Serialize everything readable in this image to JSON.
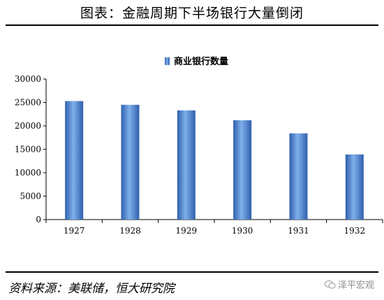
{
  "header": {
    "title": "图表：金融周期下半场银行大量倒闭"
  },
  "footer": {
    "source": "资料来源：美联储，恒大研究院",
    "watermark": "泽平宏观"
  },
  "chart_data": {
    "type": "bar",
    "categories": [
      "1927",
      "1928",
      "1929",
      "1930",
      "1931",
      "1932"
    ],
    "series": [
      {
        "name": "商业银行数量",
        "values": [
          25300,
          24500,
          23300,
          21200,
          18400,
          13900
        ]
      }
    ],
    "ylim": [
      0,
      30000
    ],
    "yticks": [
      0,
      5000,
      10000,
      15000,
      20000,
      25000,
      30000
    ],
    "legend_position": "top-center",
    "grid": false,
    "bar_color": "#4a7fc9"
  }
}
